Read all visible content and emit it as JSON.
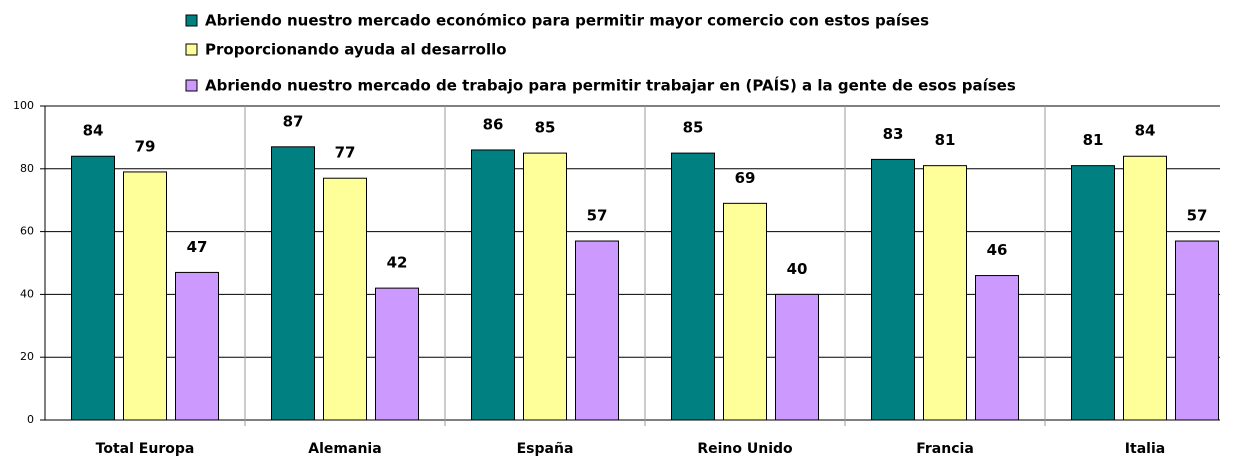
{
  "chart_data": {
    "type": "bar",
    "categories": [
      "Total Europa",
      "Alemania",
      "España",
      "Reino Unido",
      "Francia",
      "Italia"
    ],
    "series": [
      {
        "name": "Abriendo nuestro mercado económico para permitir mayor comercio con estos países",
        "color": "#008080",
        "values": [
          84,
          87,
          86,
          85,
          83,
          81
        ]
      },
      {
        "name": "Proporcionando ayuda al desarrollo",
        "color": "#ffff99",
        "values": [
          79,
          77,
          85,
          69,
          81,
          84
        ]
      },
      {
        "name": "Abriendo nuestro mercado de trabajo para permitir trabajar en (PAÍS) a la gente de esos países",
        "color": "#cc99ff",
        "values": [
          47,
          42,
          57,
          40,
          46,
          57
        ]
      }
    ],
    "ylim": [
      0,
      100
    ],
    "yticks": [
      0,
      20,
      40,
      60,
      80,
      100
    ],
    "grid": true
  }
}
